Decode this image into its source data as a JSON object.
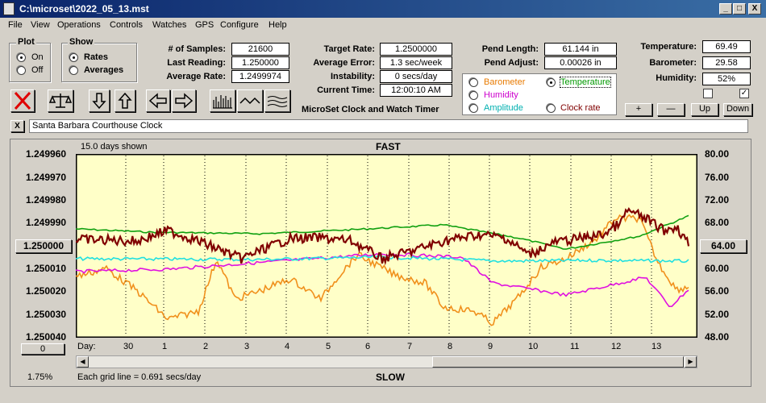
{
  "window": {
    "title": "C:\\microset\\2022_05_13.mst",
    "min": "_",
    "max": "□",
    "close": "X"
  },
  "menu": [
    "File",
    "View",
    "Operations",
    "Controls",
    "Watches",
    "GPS",
    "Configure",
    "Help"
  ],
  "plot_group": {
    "title": "Plot",
    "on": "On",
    "off": "Off",
    "selected": "On"
  },
  "show_group": {
    "title": "Show",
    "rates": "Rates",
    "averages": "Averages",
    "selected": "Rates"
  },
  "stats": {
    "samples_label": "# of Samples:",
    "samples": "21600",
    "last_label": "Last Reading:",
    "last": "1.250000",
    "avg_label": "Average Rate:",
    "avg": "1.2499974"
  },
  "rate": {
    "target_label": "Target Rate:",
    "target": "1.2500000",
    "error_label": "Average Error:",
    "error": "1.3 sec/week",
    "instab_label": "Instability:",
    "instab": "0 secs/day",
    "time_label": "Current Time:",
    "time": "12:00:10 AM",
    "caption": "MicroSet Clock and Watch Timer"
  },
  "pend": {
    "length_label": "Pend Length:",
    "length": "61.144 in",
    "adjust_label": "Pend Adjust:",
    "adjust": "0.00026 in"
  },
  "sensors": {
    "options": [
      {
        "label": "Barometer",
        "color": "#e87a00"
      },
      {
        "label": "Temperature",
        "color": "#009900"
      },
      {
        "label": "Humidity",
        "color": "#cc00cc"
      },
      {
        "label": "Amplitude",
        "color": "#00b0b0"
      },
      {
        "label": "Clock rate",
        "color": "#800000"
      }
    ],
    "selected": "Temperature"
  },
  "env": {
    "temp_label": "Temperature:",
    "temp": "69.49",
    "baro_label": "Barometer:",
    "baro": "29.58",
    "hum_label": "Humidity:",
    "hum": "52%"
  },
  "env_buttons": {
    "plus": "+",
    "minus": "—",
    "up": "Up",
    "down": "Down"
  },
  "clock_name": "Santa Barbara Courthouse Clock",
  "clear_button": "X",
  "plot": {
    "days_shown": "15.0 days shown",
    "fast": "FAST",
    "slow": "SLOW",
    "left_axis": [
      "1.249960",
      "1.249970",
      "1.249980",
      "1.249990",
      "1.250000",
      "1.250010",
      "1.250020",
      "1.250030",
      "1.250040"
    ],
    "center_value": "1.250000",
    "right_axis": [
      "80.00",
      "76.00",
      "72.00",
      "68.00",
      "64.00",
      "60.00",
      "56.00",
      "52.00",
      "48.00"
    ],
    "right_center": "64.00",
    "day_label": "Day:",
    "days": [
      "30",
      "1",
      "2",
      "3",
      "4",
      "5",
      "6",
      "7",
      "8",
      "9",
      "10",
      "11",
      "12",
      "13"
    ],
    "scroll_value": "0",
    "percent": "1.75%",
    "grid_note": "Each grid line = 0.691 secs/day"
  }
}
